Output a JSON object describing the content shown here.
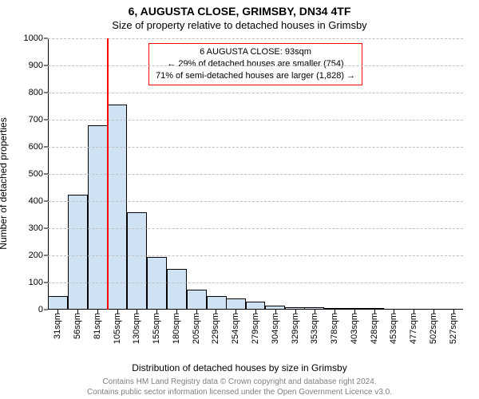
{
  "title_main": "6, AUGUSTA CLOSE, GRIMSBY, DN34 4TF",
  "title_sub": "Size of property relative to detached houses in Grimsby",
  "ylabel": "Number of detached properties",
  "xlabel": "Distribution of detached houses by size in Grimsby",
  "attribution_line1": "Contains HM Land Registry data © Crown copyright and database right 2024.",
  "attribution_line2": "Contains public sector information licensed under the Open Government Licence v3.0.",
  "chart": {
    "type": "histogram",
    "background_color": "#ffffff",
    "grid_color": "#c0c0c0",
    "axis_color": "#000000",
    "tick_fontsize": 11,
    "label_fontsize": 12,
    "title_fontsize_main": 14,
    "title_fontsize_sub": 13,
    "xlim": [
      18.5,
      539.5
    ],
    "ylim": [
      0,
      1000
    ],
    "ytick_step": 100,
    "xtick_start": 31,
    "xtick_step_value": 24.8,
    "xtick_count": 21,
    "xtick_unit": "sqm",
    "bar_color": "#cfe2f3",
    "bar_border_color": "#000000",
    "bar_width_value": 25,
    "bars": [
      {
        "x": 31,
        "y": 50
      },
      {
        "x": 56,
        "y": 425
      },
      {
        "x": 81,
        "y": 680
      },
      {
        "x": 105,
        "y": 755
      },
      {
        "x": 130,
        "y": 360
      },
      {
        "x": 155,
        "y": 195
      },
      {
        "x": 180,
        "y": 150
      },
      {
        "x": 205,
        "y": 75
      },
      {
        "x": 230,
        "y": 50
      },
      {
        "x": 254,
        "y": 40
      },
      {
        "x": 279,
        "y": 30
      },
      {
        "x": 304,
        "y": 15
      },
      {
        "x": 329,
        "y": 10
      },
      {
        "x": 353,
        "y": 10
      },
      {
        "x": 378,
        "y": 5
      },
      {
        "x": 403,
        "y": 3
      },
      {
        "x": 428,
        "y": 3
      },
      {
        "x": 453,
        "y": 0
      },
      {
        "x": 477,
        "y": 0
      },
      {
        "x": 502,
        "y": 0
      },
      {
        "x": 527,
        "y": 0
      }
    ],
    "marker": {
      "value": 93,
      "color": "#ff0000",
      "width": 2
    },
    "annotation": {
      "border_color": "#ff0000",
      "bg_color": "#ffffff",
      "line1": "6 AUGUSTA CLOSE: 93sqm",
      "line2": "← 29% of detached houses are smaller (754)",
      "line3": "71% of semi-detached houses are larger (1,828) →"
    }
  }
}
